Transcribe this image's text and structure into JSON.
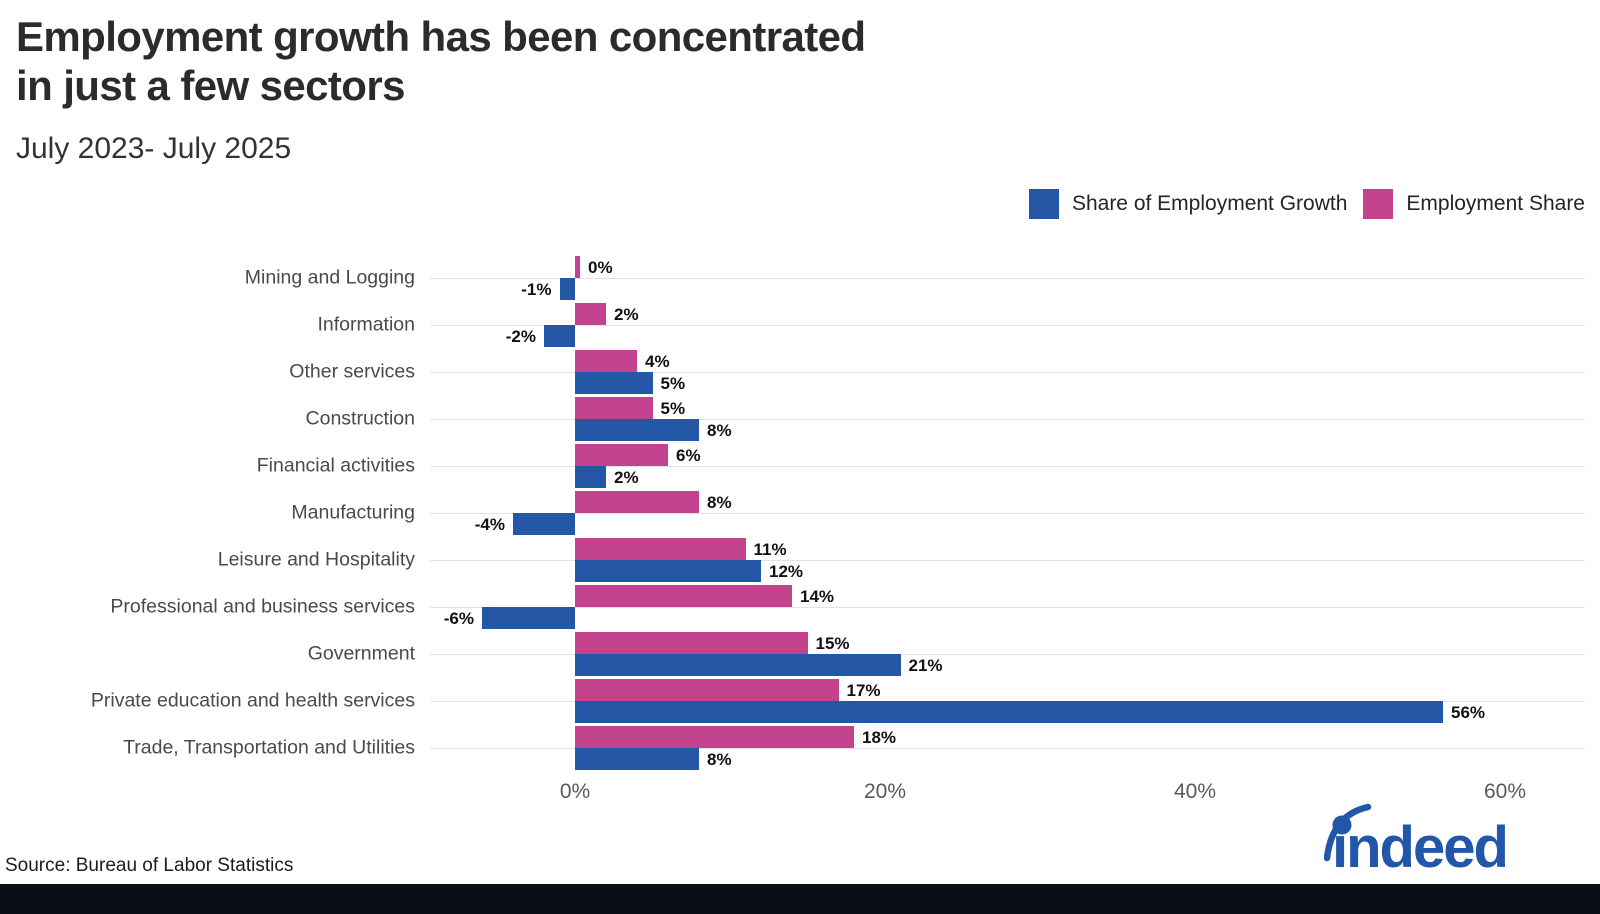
{
  "page": {
    "title_lines": [
      "Employment growth has been concentrated",
      "in just a few sectors"
    ],
    "subtitle": "July 2023- July 2025",
    "source": "Source: Bureau of Labor Statistics",
    "brand": {
      "logo_text": "indeed",
      "logo_color": "#2156a8"
    }
  },
  "colors": {
    "growth_blue": "#2557a7",
    "share_pink": "#c4438f",
    "gridline": "#e3e3e3",
    "title_text": "#2b2b2b",
    "category_label": "#4a4a4a",
    "tick_label": "#595959",
    "value_label": "#111111",
    "footer_bar": "#0b0e17",
    "background": "#ffffff"
  },
  "chart_data": {
    "type": "bar",
    "orientation": "horizontal",
    "title": "Employment growth has been concentrated in just a few sectors",
    "subtitle": "July 2023- July 2025",
    "categories": [
      "Mining and Logging",
      "Information",
      "Other services",
      "Construction",
      "Financial activities",
      "Manufacturing",
      "Leisure and Hospitality",
      "Professional and business services",
      "Government",
      "Private education and health services",
      "Trade, Transportation and Utilities"
    ],
    "series": [
      {
        "name": "Share of Employment Growth",
        "color": "#2557a7",
        "values": [
          -1,
          -2,
          5,
          8,
          2,
          -4,
          12,
          -6,
          21,
          56,
          8
        ]
      },
      {
        "name": "Employment Share",
        "color": "#c4438f",
        "values": [
          0,
          2,
          4,
          5,
          6,
          8,
          11,
          14,
          15,
          17,
          18
        ]
      }
    ],
    "bar_order_top_to_bottom": [
      "Employment Share",
      "Share of Employment Growth"
    ],
    "value_suffix": "%",
    "xlabel": "",
    "ylabel": "",
    "x_ticks": [
      0,
      20,
      40,
      60
    ],
    "x_tick_labels": [
      "0%",
      "20%",
      "40%",
      "60%"
    ],
    "xlim": [
      -9,
      65
    ],
    "grid": "horizontal-category-lines",
    "legend_position": "top-right",
    "source": "Source: Bureau of Labor Statistics"
  }
}
